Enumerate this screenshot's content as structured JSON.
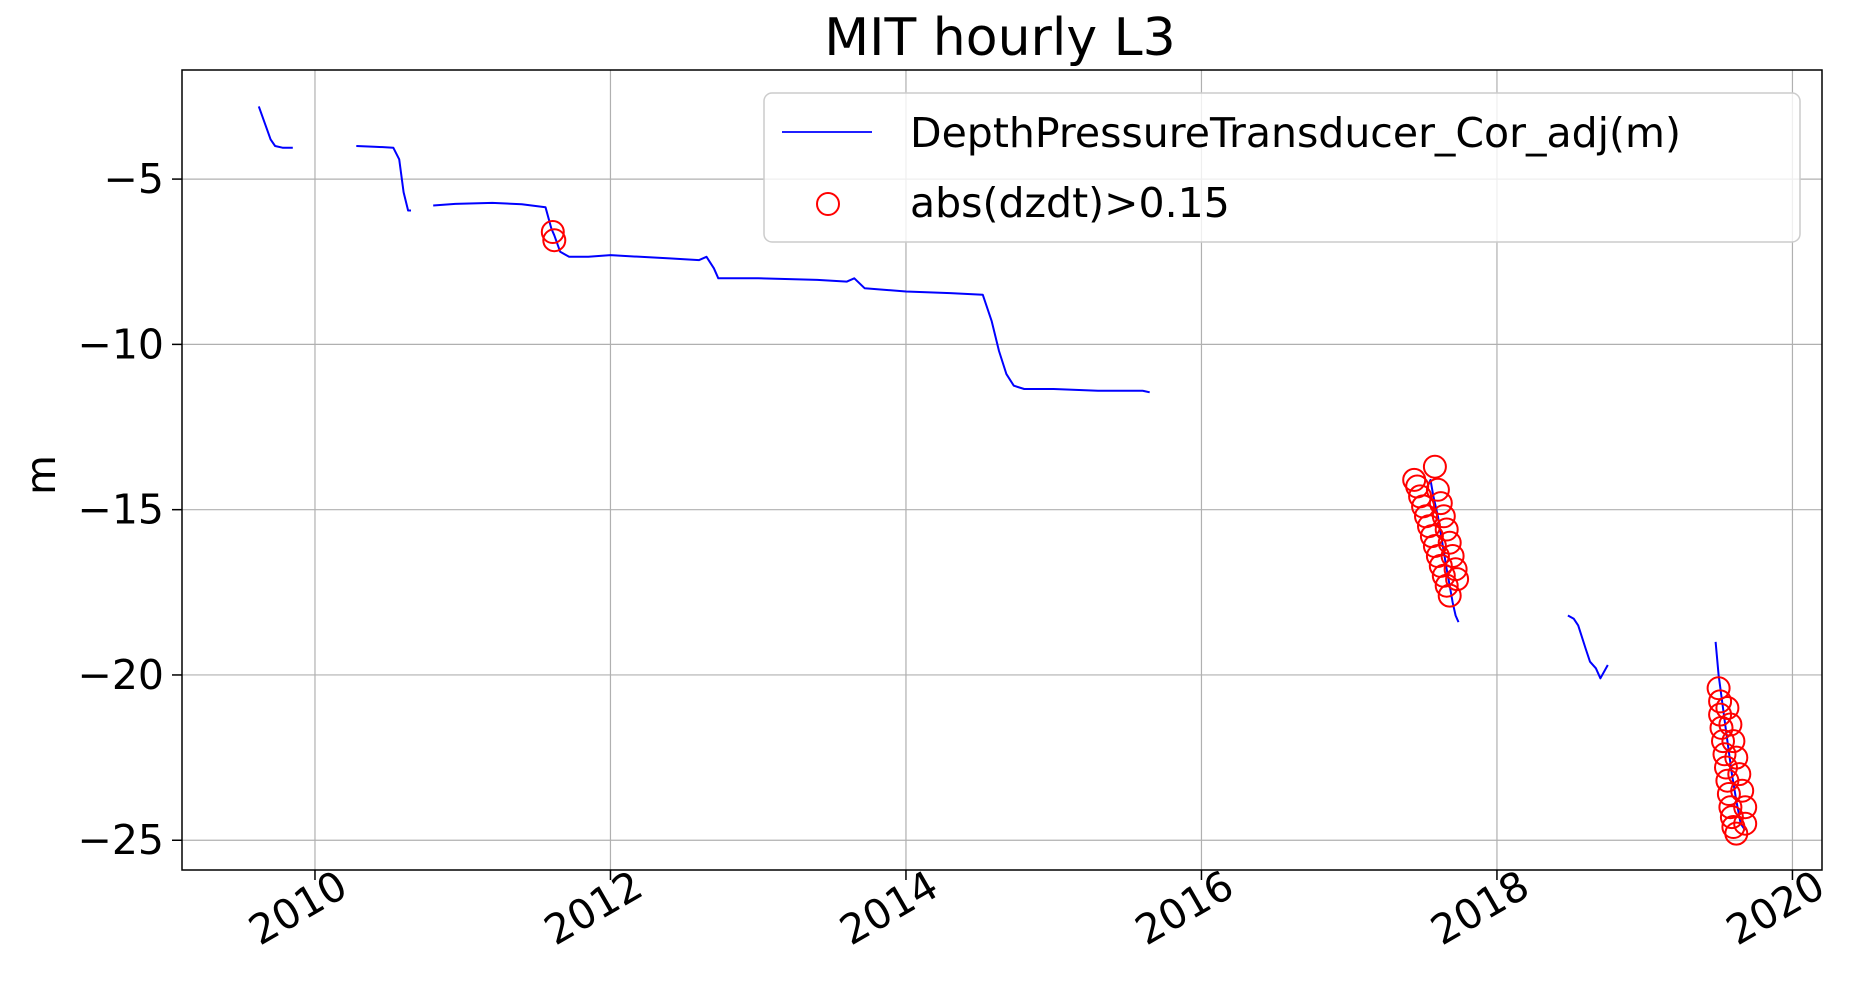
{
  "chart_data": {
    "type": "line",
    "title": "MIT hourly L3",
    "xlabel": "",
    "ylabel": "m",
    "xlim": [
      2009.1,
      2020.2
    ],
    "ylim": [
      -25.9,
      -1.7
    ],
    "xticks": [
      2010,
      2012,
      2014,
      2016,
      2018,
      2020
    ],
    "xtick_labels": [
      "2010",
      "2012",
      "2014",
      "2016",
      "2018",
      "2020"
    ],
    "yticks": [
      -5,
      -10,
      -15,
      -20,
      -25
    ],
    "ytick_labels": [
      "−5",
      "−10",
      "−15",
      "−20",
      "−25"
    ],
    "grid": true,
    "legend_position": "top-right",
    "colors": {
      "line": "#0000ff",
      "marker": "#ff0000"
    },
    "series": [
      {
        "name": "DepthPressureTransducer_Cor_adj(m)",
        "kind": "line",
        "segments": [
          [
            [
              2009.62,
              -2.8
            ],
            [
              2009.66,
              -3.3
            ],
            [
              2009.7,
              -3.8
            ],
            [
              2009.73,
              -4.0
            ],
            [
              2009.78,
              -4.05
            ],
            [
              2009.85,
              -4.05
            ]
          ],
          [
            [
              2010.28,
              -4.0
            ],
            [
              2010.4,
              -4.02
            ],
            [
              2010.53,
              -4.05
            ],
            [
              2010.57,
              -4.4
            ],
            [
              2010.6,
              -5.4
            ],
            [
              2010.63,
              -5.95
            ],
            [
              2010.65,
              -5.95
            ]
          ],
          [
            [
              2010.8,
              -5.8
            ],
            [
              2010.95,
              -5.75
            ],
            [
              2011.2,
              -5.72
            ],
            [
              2011.4,
              -5.76
            ],
            [
              2011.56,
              -5.85
            ],
            [
              2011.6,
              -6.5
            ],
            [
              2011.62,
              -6.7
            ],
            [
              2011.66,
              -7.2
            ],
            [
              2011.72,
              -7.35
            ],
            [
              2011.85,
              -7.35
            ],
            [
              2012.0,
              -7.3
            ],
            [
              2012.2,
              -7.35
            ],
            [
              2012.4,
              -7.4
            ],
            [
              2012.6,
              -7.45
            ],
            [
              2012.65,
              -7.35
            ],
            [
              2012.7,
              -7.7
            ],
            [
              2012.73,
              -8.0
            ],
            [
              2013.0,
              -8.0
            ],
            [
              2013.4,
              -8.05
            ],
            [
              2013.6,
              -8.1
            ],
            [
              2013.65,
              -8.0
            ],
            [
              2013.72,
              -8.3
            ],
            [
              2014.0,
              -8.4
            ],
            [
              2014.3,
              -8.45
            ],
            [
              2014.52,
              -8.5
            ],
            [
              2014.58,
              -9.3
            ],
            [
              2014.63,
              -10.2
            ],
            [
              2014.68,
              -10.9
            ],
            [
              2014.73,
              -11.25
            ],
            [
              2014.8,
              -11.35
            ],
            [
              2015.0,
              -11.35
            ],
            [
              2015.3,
              -11.4
            ],
            [
              2015.6,
              -11.4
            ],
            [
              2015.65,
              -11.45
            ]
          ],
          [
            [
              2017.53,
              -14.3
            ],
            [
              2017.55,
              -14.1
            ],
            [
              2017.57,
              -14.6
            ],
            [
              2017.6,
              -15.2
            ],
            [
              2017.63,
              -16.0
            ],
            [
              2017.66,
              -16.8
            ],
            [
              2017.68,
              -17.3
            ],
            [
              2017.7,
              -17.8
            ],
            [
              2017.72,
              -18.2
            ],
            [
              2017.74,
              -18.4
            ]
          ],
          [
            [
              2018.48,
              -18.2
            ],
            [
              2018.52,
              -18.3
            ],
            [
              2018.55,
              -18.5
            ],
            [
              2018.6,
              -19.2
            ],
            [
              2018.63,
              -19.6
            ],
            [
              2018.67,
              -19.8
            ],
            [
              2018.7,
              -20.1
            ],
            [
              2018.75,
              -19.7
            ]
          ],
          [
            [
              2019.48,
              -19.0
            ],
            [
              2019.5,
              -20.0
            ],
            [
              2019.53,
              -21.0
            ],
            [
              2019.56,
              -22.0
            ],
            [
              2019.59,
              -23.0
            ],
            [
              2019.62,
              -23.8
            ],
            [
              2019.65,
              -24.5
            ],
            [
              2019.68,
              -24.7
            ]
          ]
        ]
      },
      {
        "name": "abs(dzdt)>0.15",
        "kind": "scatter",
        "marker": "open-circle",
        "points": [
          [
            2011.61,
            -6.6
          ],
          [
            2011.62,
            -6.85
          ],
          [
            2017.44,
            -14.1
          ],
          [
            2017.46,
            -14.3
          ],
          [
            2017.48,
            -14.6
          ],
          [
            2017.5,
            -14.9
          ],
          [
            2017.52,
            -15.2
          ],
          [
            2017.54,
            -15.5
          ],
          [
            2017.56,
            -15.8
          ],
          [
            2017.58,
            -13.7
          ],
          [
            2017.58,
            -16.1
          ],
          [
            2017.6,
            -14.4
          ],
          [
            2017.6,
            -16.4
          ],
          [
            2017.62,
            -14.8
          ],
          [
            2017.62,
            -16.7
          ],
          [
            2017.64,
            -15.2
          ],
          [
            2017.64,
            -17.0
          ],
          [
            2017.66,
            -15.6
          ],
          [
            2017.66,
            -17.3
          ],
          [
            2017.68,
            -16.0
          ],
          [
            2017.68,
            -17.6
          ],
          [
            2017.7,
            -16.4
          ],
          [
            2017.72,
            -16.8
          ],
          [
            2017.73,
            -17.1
          ],
          [
            2019.5,
            -20.4
          ],
          [
            2019.51,
            -20.8
          ],
          [
            2019.51,
            -21.2
          ],
          [
            2019.52,
            -21.6
          ],
          [
            2019.53,
            -22.0
          ],
          [
            2019.54,
            -22.4
          ],
          [
            2019.55,
            -22.8
          ],
          [
            2019.56,
            -23.2
          ],
          [
            2019.57,
            -23.6
          ],
          [
            2019.58,
            -24.0
          ],
          [
            2019.59,
            -24.3
          ],
          [
            2019.6,
            -24.6
          ],
          [
            2019.62,
            -24.8
          ],
          [
            2019.56,
            -21.0
          ],
          [
            2019.58,
            -21.5
          ],
          [
            2019.6,
            -22.0
          ],
          [
            2019.62,
            -22.5
          ],
          [
            2019.64,
            -23.0
          ],
          [
            2019.66,
            -23.5
          ],
          [
            2019.68,
            -24.0
          ],
          [
            2019.68,
            -24.5
          ]
        ]
      }
    ]
  }
}
